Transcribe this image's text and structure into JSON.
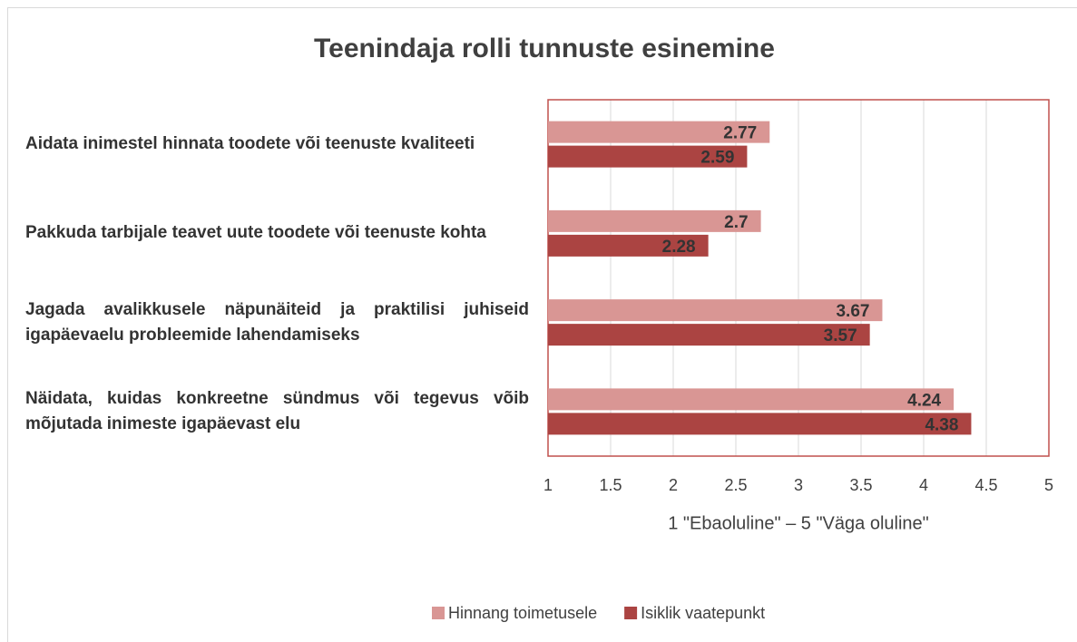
{
  "chart_data": {
    "type": "bar",
    "orientation": "horizontal",
    "title": "Teenindaja rolli tunnuste esinemine",
    "x_label": "1 \"Ebaoluline\" – 5 \"Väga oluline\"",
    "categories": [
      "Aidata inimestel hinnata toodete või teenuste kvaliteeti",
      "Pakkuda tarbijale teavet uute toodete või teenuste kohta",
      "Jagada avalikkusele näpunäiteid ja praktilisi juhiseid igapäevaelu probleemide lahendamiseks",
      "Näidata, kuidas konkreetne sündmus või tegevus võib mõjutada inimeste igapäevast elu"
    ],
    "series": [
      {
        "name": "Hinnang toimetusele",
        "color": "#d99694",
        "values": [
          2.77,
          2.7,
          3.67,
          4.24
        ]
      },
      {
        "name": "Isiklik vaatepunkt",
        "color": "#ab4442",
        "values": [
          2.59,
          2.28,
          3.57,
          4.38
        ]
      }
    ],
    "xlim": [
      1,
      5
    ],
    "xticks": [
      1,
      1.5,
      2,
      2.5,
      3,
      3.5,
      4,
      4.5,
      5
    ],
    "grid": true,
    "legend": "bottom"
  }
}
